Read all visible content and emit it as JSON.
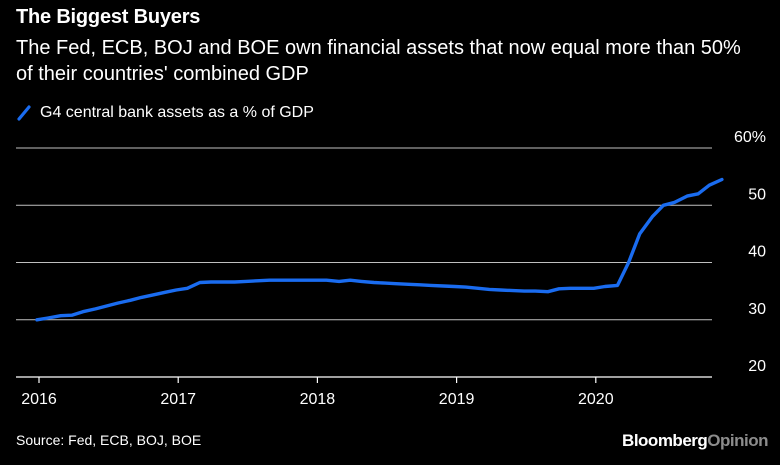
{
  "title": "The Biggest Buyers",
  "subtitle": "The Fed, ECB, BOJ and BOE own financial assets that now equal more than 50% of their countries' combined GDP",
  "legend_label": "G4 central bank assets as a % of GDP",
  "source": "Source: Fed, ECB, BOJ, BOE",
  "brand": {
    "part1": "Bloomberg",
    "part2": "Opinion"
  },
  "colors": {
    "line": "#1a6cf0",
    "grid": "#bfbfbf",
    "axis": "#ffffff",
    "background": "#000000"
  },
  "chart_data": {
    "type": "line",
    "title": "The Biggest Buyers",
    "xlabel": "",
    "ylabel": "",
    "xlim": [
      2016.0,
      2021.0
    ],
    "ylim": [
      20,
      60
    ],
    "yticks": [
      20,
      30,
      40,
      50,
      60
    ],
    "ytick_labels": [
      "20",
      "30",
      "40",
      "50",
      "60%"
    ],
    "xticks": [
      2016,
      2017,
      2018,
      2019,
      2020
    ],
    "xtick_labels": [
      "2016",
      "2017",
      "2018",
      "2019",
      "2020"
    ],
    "grid": true,
    "legend_position": "top-left",
    "series": [
      {
        "name": "G4 central bank assets as a % of GDP",
        "x": [
          2016.0,
          2016.08,
          2016.17,
          2016.25,
          2016.33,
          2016.42,
          2016.5,
          2016.58,
          2016.67,
          2016.75,
          2016.83,
          2016.92,
          2017.0,
          2017.08,
          2017.17,
          2017.25,
          2017.33,
          2017.42,
          2017.5,
          2017.58,
          2017.67,
          2017.75,
          2017.83,
          2017.92,
          2018.0,
          2018.08,
          2018.17,
          2018.25,
          2018.33,
          2018.42,
          2018.5,
          2018.58,
          2018.67,
          2018.75,
          2018.83,
          2018.92,
          2019.0,
          2019.08,
          2019.17,
          2019.25,
          2019.33,
          2019.42,
          2019.5,
          2019.58,
          2019.67,
          2019.75,
          2019.83,
          2019.92,
          2020.0,
          2020.08,
          2020.17,
          2020.25,
          2020.33,
          2020.42,
          2020.5,
          2020.58,
          2020.67,
          2020.75,
          2020.83,
          2020.92
        ],
        "y": [
          30.0,
          30.3,
          30.7,
          30.8,
          31.4,
          31.9,
          32.4,
          32.9,
          33.4,
          33.9,
          34.3,
          34.8,
          35.2,
          35.5,
          36.5,
          36.6,
          36.6,
          36.6,
          36.7,
          36.8,
          36.9,
          36.9,
          36.9,
          36.9,
          36.9,
          36.9,
          36.7,
          36.9,
          36.7,
          36.5,
          36.4,
          36.3,
          36.2,
          36.1,
          36.0,
          35.9,
          35.8,
          35.7,
          35.5,
          35.3,
          35.2,
          35.1,
          35.0,
          35.0,
          34.9,
          35.4,
          35.5,
          35.5,
          35.5,
          35.8,
          36.0,
          40.0,
          45.0,
          48.0,
          50.0,
          50.5,
          51.6,
          52.0,
          53.5,
          54.5
        ]
      }
    ]
  }
}
